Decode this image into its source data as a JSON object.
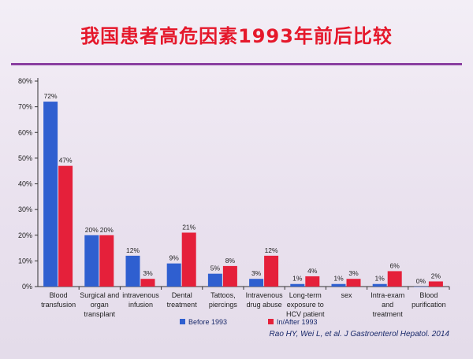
{
  "title": "我国患者高危因素1993年前后比较",
  "citation": "Rao HY, Wei L, et al. J Gastroenterol Hepatol. 2014",
  "colors": {
    "before": "#2f5fd0",
    "after": "#e5203a",
    "title": "#e5182b",
    "rule": "#8a3fa0"
  },
  "chart_data": {
    "type": "bar",
    "categories": [
      [
        "Blood",
        "transfusion"
      ],
      [
        "Surgical and",
        "organ",
        "transplant"
      ],
      [
        "intravenous",
        "infusion"
      ],
      [
        "Dental",
        "treatment"
      ],
      [
        "Tattoos,",
        "piercings"
      ],
      [
        "Intravenous",
        "drug abuse"
      ],
      [
        "Long-term",
        "exposure to",
        "HCV patient"
      ],
      [
        "sex"
      ],
      [
        "Intra-exam",
        "and",
        "treatment"
      ],
      [
        "Blood",
        "purification"
      ]
    ],
    "series": [
      {
        "name": "Before 1993",
        "values": [
          72,
          20,
          12,
          9,
          5,
          3,
          1,
          1,
          1,
          0
        ],
        "labels": [
          "72%",
          "20%",
          "12%",
          "9%",
          "5%",
          "3%",
          "1%",
          "1%",
          "1%",
          "0%"
        ]
      },
      {
        "name": "In/After 1993",
        "values": [
          47,
          20,
          3,
          21,
          8,
          12,
          4,
          3,
          6,
          2
        ],
        "labels": [
          "47%",
          "20%",
          "3%",
          "21%",
          "8%",
          "12%",
          "4%",
          "3%",
          "6%",
          "2%"
        ]
      }
    ],
    "ylim": [
      0,
      80
    ],
    "yticks": [
      0,
      10,
      20,
      30,
      40,
      50,
      60,
      70,
      80
    ],
    "ytick_labels": [
      "0%",
      "10%",
      "20%",
      "30%",
      "40%",
      "50%",
      "60%",
      "70%",
      "80%"
    ],
    "legend": "bottom",
    "grid": false
  }
}
